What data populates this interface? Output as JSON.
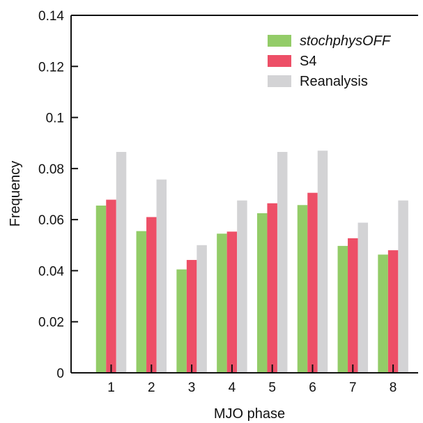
{
  "chart_data": {
    "type": "bar",
    "title": "",
    "xlabel": "MJO phase",
    "ylabel": "Frequency",
    "categories": [
      "1",
      "2",
      "3",
      "4",
      "5",
      "6",
      "7",
      "8"
    ],
    "ylim": [
      0,
      0.14
    ],
    "yticks": [
      "0",
      "0.02",
      "0.04",
      "0.06",
      "0.08",
      "0.1",
      "0.12",
      "0.14"
    ],
    "ytick_values": [
      0,
      0.02,
      0.04,
      0.06,
      0.08,
      0.1,
      0.12,
      0.14
    ],
    "grid": false,
    "legend_position": "top-right",
    "series": [
      {
        "name": "stochphysOFF",
        "color": "#93cc68",
        "italic": true,
        "values": [
          0.0655,
          0.0555,
          0.0405,
          0.0545,
          0.0625,
          0.0657,
          0.0497,
          0.0463
        ]
      },
      {
        "name": "S4",
        "color": "#ed4f67",
        "italic": false,
        "values": [
          0.0678,
          0.061,
          0.0442,
          0.0553,
          0.0664,
          0.0705,
          0.0527,
          0.048
        ]
      },
      {
        "name": "Reanalysis",
        "color": "#d3d3d5",
        "italic": false,
        "values": [
          0.0865,
          0.0757,
          0.05,
          0.0675,
          0.0865,
          0.087,
          0.0588,
          0.0675
        ]
      }
    ]
  }
}
